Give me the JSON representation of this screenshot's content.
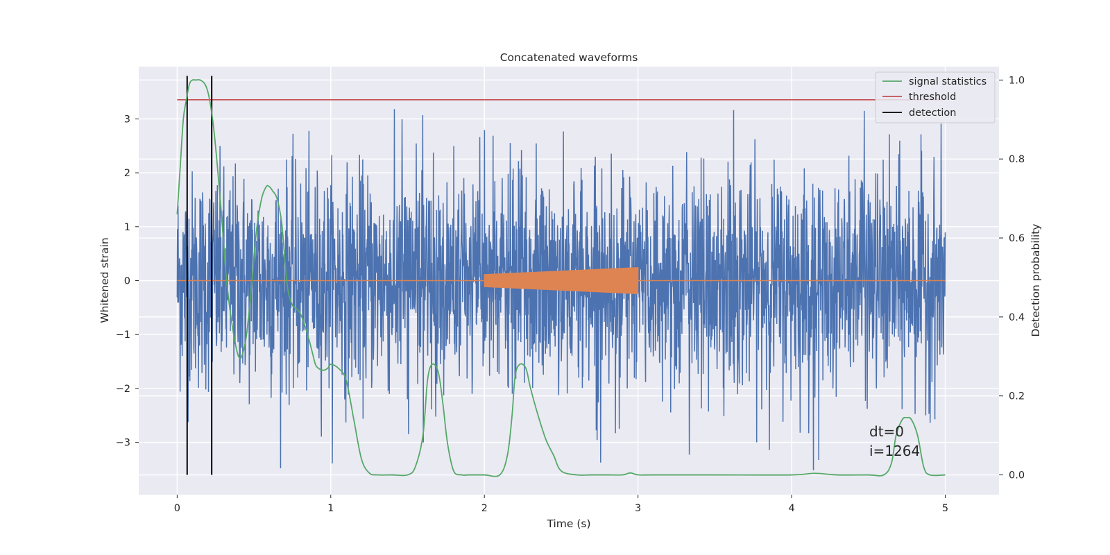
{
  "chart_data": {
    "type": "line",
    "title": "Concatenated waveforms",
    "xlabel": "Time (s)",
    "ylabel": "Whitened strain",
    "y2label": "Detection probability",
    "xlim": [
      -0.25,
      5.35
    ],
    "ylim": [
      -3.97,
      3.97
    ],
    "y2lim": [
      -0.05,
      1.034
    ],
    "xticks": [
      0,
      1,
      2,
      3,
      4,
      5
    ],
    "yticks": [
      -3,
      -2,
      -1,
      0,
      1,
      2,
      3
    ],
    "y2ticks": [
      0.0,
      0.2,
      0.4,
      0.6,
      0.8,
      1.0
    ],
    "xtick_labels": [
      "0",
      "1",
      "2",
      "3",
      "4",
      "5"
    ],
    "ytick_labels": [
      "−3",
      "−2",
      "−1",
      "0",
      "1",
      "2",
      "3"
    ],
    "y2tick_labels": [
      "0.0",
      "0.2",
      "0.4",
      "0.6",
      "0.8",
      "1.0"
    ],
    "grid": true,
    "legend_position": "top-right",
    "legend": [
      "signal statistics",
      "threshold",
      "detection"
    ],
    "colors": {
      "noise": "#4c72b0",
      "injected_signal": "#dd8452",
      "signal_statistics": "#55a868",
      "threshold": "#c44e52",
      "detection": "#000000"
    },
    "noise": {
      "x_range": [
        0,
        5
      ],
      "typical_amplitude": 1.0,
      "peak_max": 3.2,
      "peak_min": -3.6
    },
    "injected_signal": {
      "x_range": [
        2.0,
        3.0
      ],
      "amplitude_start": 0.12,
      "amplitude_end": 0.25
    },
    "threshold": {
      "y2": 0.95,
      "x_range": [
        0,
        5
      ]
    },
    "detections": [
      0.065,
      0.225
    ],
    "signal_statistics": {
      "x": [
        0,
        0.02,
        0.04,
        0.06,
        0.08,
        0.1,
        0.12,
        0.15,
        0.18,
        0.2,
        0.22,
        0.24,
        0.26,
        0.28,
        0.3,
        0.32,
        0.35,
        0.38,
        0.4,
        0.42,
        0.45,
        0.48,
        0.5,
        0.52,
        0.55,
        0.58,
        0.6,
        0.62,
        0.65,
        0.68,
        0.7,
        0.72,
        0.75,
        0.78,
        0.8,
        0.83,
        0.86,
        0.88,
        0.9,
        0.92,
        0.95,
        0.98,
        1.0,
        1.05,
        1.1,
        1.15,
        1.2,
        1.25,
        1.3,
        1.4,
        1.5,
        1.55,
        1.6,
        1.63,
        1.66,
        1.7,
        1.73,
        1.76,
        1.8,
        1.85,
        1.9,
        2.0,
        2.1,
        2.15,
        2.18,
        2.2,
        2.23,
        2.27,
        2.3,
        2.35,
        2.4,
        2.45,
        2.5,
        2.6,
        2.7,
        2.8,
        2.9,
        2.95,
        3.0,
        3.1,
        3.5,
        4.0,
        4.15,
        4.3,
        4.5,
        4.6,
        4.65,
        4.68,
        4.72,
        4.75,
        4.78,
        4.82,
        4.86,
        4.9,
        5.0
      ],
      "y": [
        0.66,
        0.78,
        0.9,
        0.95,
        0.99,
        1.0,
        1.0,
        1.0,
        0.99,
        0.97,
        0.93,
        0.87,
        0.79,
        0.7,
        0.6,
        0.5,
        0.4,
        0.33,
        0.3,
        0.3,
        0.35,
        0.46,
        0.55,
        0.63,
        0.7,
        0.73,
        0.73,
        0.72,
        0.7,
        0.64,
        0.55,
        0.47,
        0.43,
        0.42,
        0.41,
        0.38,
        0.34,
        0.31,
        0.28,
        0.27,
        0.265,
        0.27,
        0.28,
        0.27,
        0.24,
        0.14,
        0.04,
        0.005,
        0.0,
        0.0,
        0.0,
        0.02,
        0.1,
        0.24,
        0.28,
        0.26,
        0.18,
        0.08,
        0.01,
        0.0,
        0.0,
        0.0,
        0.0,
        0.05,
        0.15,
        0.25,
        0.28,
        0.27,
        0.22,
        0.15,
        0.09,
        0.05,
        0.01,
        0.0,
        0.0,
        0.0,
        0.0,
        0.005,
        0.0,
        0.0,
        0.0,
        0.0,
        0.004,
        0.0,
        0.0,
        0.0,
        0.03,
        0.1,
        0.14,
        0.145,
        0.14,
        0.1,
        0.02,
        0.0,
        0.0
      ]
    }
  },
  "annotation": {
    "line1": "dt=0",
    "line2": "i=1264"
  }
}
